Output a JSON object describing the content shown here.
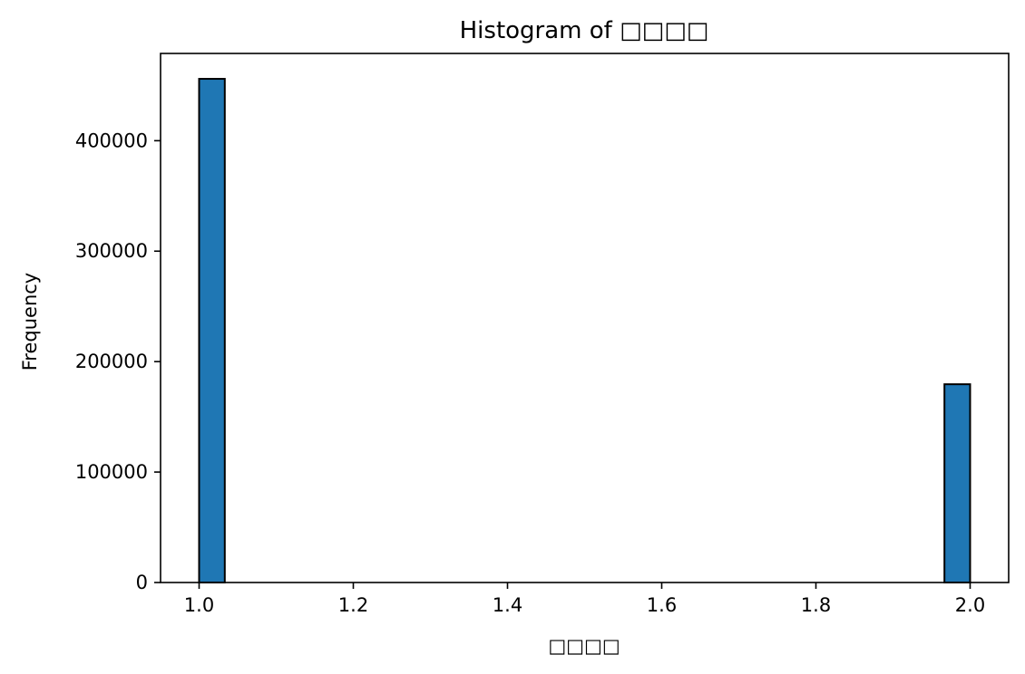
{
  "chart_data": {
    "type": "bar",
    "title": "Histogram of □□□□",
    "xlabel": "□□□□",
    "ylabel": "Frequency",
    "xlim": [
      0.95,
      2.05
    ],
    "ylim": [
      0,
      479000
    ],
    "x_ticks": [
      1.0,
      1.2,
      1.4,
      1.6,
      1.8,
      2.0
    ],
    "x_tick_labels": [
      "1.0",
      "1.2",
      "1.4",
      "1.6",
      "1.8",
      "2.0"
    ],
    "y_ticks": [
      0,
      100000,
      200000,
      300000,
      400000
    ],
    "y_tick_labels": [
      "0",
      "100000",
      "200000",
      "300000",
      "400000"
    ],
    "bins": [
      {
        "x0": 1.0,
        "x1": 1.0333,
        "value": 456000
      },
      {
        "x0": 1.9667,
        "x1": 2.0,
        "value": 179500
      }
    ],
    "bar_color": "#1f77b4",
    "edge_color": "#000000",
    "grid": false,
    "legend": "none"
  }
}
